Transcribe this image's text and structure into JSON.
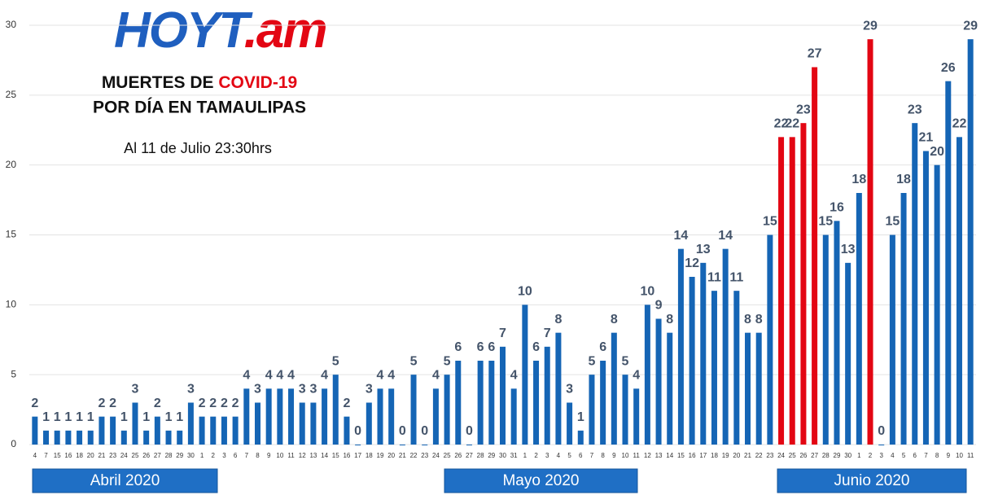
{
  "chart_data": {
    "type": "bar",
    "logo": [
      "HOYT",
      ".am"
    ],
    "title": [
      "MUERTES DE ",
      "COVID-19"
    ],
    "subtitle": "POR DÍA EN TAMAULIPAS",
    "note": "Al 11 de Julio 23:30hrs",
    "months": [
      "Abril 2020",
      "Mayo 2020",
      "Junio 2020"
    ],
    "categories": [
      "4",
      "7",
      "15",
      "16",
      "18",
      "20",
      "21",
      "23",
      "24",
      "25",
      "26",
      "27",
      "28",
      "29",
      "30",
      "1",
      "2",
      "3",
      "6",
      "7",
      "8",
      "9",
      "10",
      "11",
      "12",
      "13",
      "14",
      "15",
      "16",
      "17",
      "18",
      "19",
      "20",
      "21",
      "22",
      "23",
      "24",
      "25",
      "26",
      "27",
      "28",
      "29",
      "30",
      "31",
      "1",
      "2",
      "3",
      "4",
      "5",
      "6",
      "7",
      "8",
      "9",
      "10",
      "11",
      "12",
      "13",
      "14",
      "15",
      "16",
      "17",
      "18",
      "19",
      "20",
      "21",
      "22",
      "23",
      "24",
      "25",
      "26",
      "27",
      "28",
      "29",
      "30",
      "1",
      "2",
      "3",
      "4",
      "5",
      "6",
      "7",
      "8",
      "9",
      "10",
      "11"
    ],
    "values": [
      2,
      1,
      1,
      1,
      1,
      1,
      2,
      2,
      1,
      3,
      1,
      2,
      1,
      1,
      3,
      2,
      2,
      2,
      2,
      4,
      3,
      4,
      4,
      4,
      3,
      3,
      4,
      5,
      2,
      0,
      3,
      4,
      4,
      0,
      5,
      0,
      4,
      5,
      6,
      0,
      6,
      6,
      7,
      4,
      10,
      6,
      7,
      8,
      3,
      1,
      5,
      6,
      8,
      5,
      4,
      10,
      9,
      8,
      14,
      12,
      13,
      11,
      14,
      11,
      8,
      8,
      15,
      22,
      22,
      23,
      27,
      15,
      16,
      13,
      18,
      29,
      0,
      15,
      18,
      23,
      21,
      20,
      26,
      22,
      29
    ],
    "colors": [
      "#1565b5",
      "#1565b5",
      "#1565b5",
      "#1565b5",
      "#1565b5",
      "#1565b5",
      "#1565b5",
      "#1565b5",
      "#1565b5",
      "#1565b5",
      "#1565b5",
      "#1565b5",
      "#1565b5",
      "#1565b5",
      "#1565b5",
      "#1565b5",
      "#1565b5",
      "#1565b5",
      "#1565b5",
      "#1565b5",
      "#1565b5",
      "#1565b5",
      "#1565b5",
      "#1565b5",
      "#1565b5",
      "#1565b5",
      "#1565b5",
      "#1565b5",
      "#1565b5",
      "#1565b5",
      "#1565b5",
      "#1565b5",
      "#1565b5",
      "#1565b5",
      "#1565b5",
      "#1565b5",
      "#1565b5",
      "#1565b5",
      "#1565b5",
      "#1565b5",
      "#1565b5",
      "#1565b5",
      "#1565b5",
      "#1565b5",
      "#1565b5",
      "#1565b5",
      "#1565b5",
      "#1565b5",
      "#1565b5",
      "#1565b5",
      "#1565b5",
      "#1565b5",
      "#1565b5",
      "#1565b5",
      "#1565b5",
      "#1565b5",
      "#1565b5",
      "#1565b5",
      "#1565b5",
      "#1565b5",
      "#1565b5",
      "#1565b5",
      "#1565b5",
      "#1565b5",
      "#1565b5",
      "#1565b5",
      "#1565b5",
      "#e30613",
      "#e30613",
      "#e30613",
      "#e30613",
      "#1565b5",
      "#1565b5",
      "#1565b5",
      "#1565b5",
      "#e30613",
      "#1565b5",
      "#1565b5",
      "#1565b5",
      "#1565b5",
      "#1565b5",
      "#1565b5",
      "#1565b5",
      "#1565b5",
      "#1565b5"
    ],
    "ylim": [
      0,
      30
    ],
    "yticks": [
      0,
      5,
      10,
      15,
      20,
      25,
      30
    ],
    "grid": true
  }
}
